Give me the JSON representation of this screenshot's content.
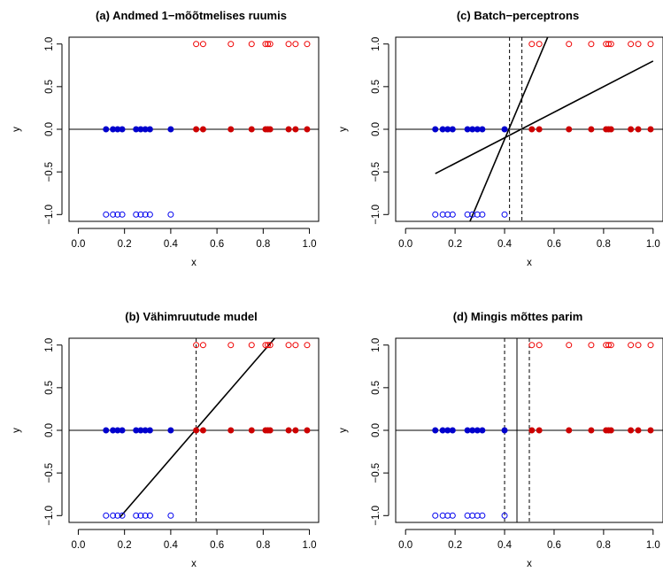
{
  "chart_data": [
    {
      "id": "a",
      "type": "scatter",
      "title": "(a) Andmed 1−mõõtmelises ruumis",
      "xlabel": "x",
      "ylabel": "y",
      "xlim": [
        -0.04,
        1.04
      ],
      "ylim": [
        -1.08,
        1.08
      ],
      "xticks": [
        "0.0",
        "0.2",
        "0.4",
        "0.6",
        "0.8",
        "1.0"
      ],
      "xtick_values": [
        0,
        0.2,
        0.4,
        0.6,
        0.8,
        1.0
      ],
      "yticks": [
        "−1.0",
        "−0.5",
        "0.0",
        "0.5",
        "1.0"
      ],
      "ytick_values": [
        -1,
        -0.5,
        0,
        0.5,
        1
      ],
      "hline": 0,
      "vlines_dashed": [],
      "vlines_solid": [],
      "lines": []
    },
    {
      "id": "c",
      "type": "scatter",
      "title": "(c) Batch−perceptrons",
      "xlabel": "x",
      "ylabel": "y",
      "xlim": [
        -0.04,
        1.04
      ],
      "ylim": [
        -1.08,
        1.08
      ],
      "xticks": [
        "0.0",
        "0.2",
        "0.4",
        "0.6",
        "0.8",
        "1.0"
      ],
      "xtick_values": [
        0,
        0.2,
        0.4,
        0.6,
        0.8,
        1.0
      ],
      "yticks": [
        "−1.0",
        "−0.5",
        "0.0",
        "0.5",
        "1.0"
      ],
      "ytick_values": [
        -1,
        -0.5,
        0,
        0.5,
        1
      ],
      "hline": 0,
      "vlines_dashed": [
        0.42,
        0.47
      ],
      "vlines_solid": [],
      "lines": [
        {
          "x0": 0.12,
          "y0": -0.52,
          "x1": 1.0,
          "y1": 0.8
        },
        {
          "x0": 0.25,
          "y0": -1.15,
          "x1": 0.58,
          "y1": 1.12
        }
      ]
    },
    {
      "id": "b",
      "type": "scatter",
      "title": "(b) Vähimruutude mudel",
      "xlabel": "x",
      "ylabel": "y",
      "xlim": [
        -0.04,
        1.04
      ],
      "ylim": [
        -1.08,
        1.08
      ],
      "xticks": [
        "0.0",
        "0.2",
        "0.4",
        "0.6",
        "0.8",
        "1.0"
      ],
      "xtick_values": [
        0,
        0.2,
        0.4,
        0.6,
        0.8,
        1.0
      ],
      "yticks": [
        "−1.0",
        "−0.5",
        "0.0",
        "0.5",
        "1.0"
      ],
      "ytick_values": [
        -1,
        -0.5,
        0,
        0.5,
        1
      ],
      "hline": 0,
      "vlines_dashed": [
        0.51
      ],
      "vlines_solid": [],
      "lines": [
        {
          "x0": 0.18,
          "y0": -1.02,
          "x1": 0.85,
          "y1": 1.08
        }
      ]
    },
    {
      "id": "d",
      "type": "scatter",
      "title": "(d) Mingis mõttes parim",
      "xlabel": "x",
      "ylabel": "y",
      "xlim": [
        -0.04,
        1.04
      ],
      "ylim": [
        -1.08,
        1.08
      ],
      "xticks": [
        "0.0",
        "0.2",
        "0.4",
        "0.6",
        "0.8",
        "1.0"
      ],
      "xtick_values": [
        0,
        0.2,
        0.4,
        0.6,
        0.8,
        1.0
      ],
      "yticks": [
        "−1.0",
        "−0.5",
        "0.0",
        "0.5",
        "1.0"
      ],
      "ytick_values": [
        -1,
        -0.5,
        0,
        0.5,
        1
      ],
      "hline": 0,
      "vlines_dashed": [
        0.4,
        0.5
      ],
      "vlines_solid": [
        0.45
      ],
      "lines": []
    }
  ],
  "shared_data": {
    "blue_x": [
      0.12,
      0.15,
      0.17,
      0.19,
      0.25,
      0.27,
      0.29,
      0.31,
      0.4
    ],
    "red_x": [
      0.51,
      0.54,
      0.66,
      0.75,
      0.81,
      0.82,
      0.83,
      0.91,
      0.94,
      0.99
    ],
    "blue_open_y": -1,
    "red_open_y": 1,
    "filled_y": 0,
    "colors": {
      "blue_open": "#0000ee",
      "blue_filled": "#0000cd",
      "red_open": "#ee0000",
      "red_filled": "#cd0000",
      "axis": "#000000"
    }
  }
}
